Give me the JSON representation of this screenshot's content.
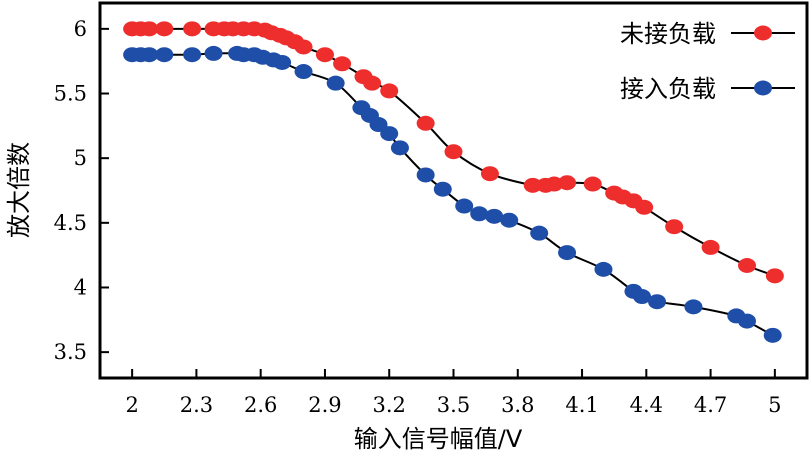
{
  "chart_data": {
    "type": "line",
    "xlabel": "输入信号幅值/V",
    "ylabel": "放大倍数",
    "xlim": [
      1.85,
      5.15
    ],
    "ylim": [
      3.3,
      6.2
    ],
    "xticks": [
      "2",
      "2.3",
      "2.6",
      "2.9",
      "3.2",
      "3.5",
      "3.8",
      "4.1",
      "4.4",
      "4.7",
      "5"
    ],
    "yticks": [
      "3.5",
      "4",
      "4.5",
      "5",
      "5.5",
      "6"
    ],
    "grid": false,
    "legend_position": "top-right",
    "series": [
      {
        "name": "未接负载",
        "color": "#ee2d2d",
        "x": [
          2.0,
          2.04,
          2.08,
          2.15,
          2.28,
          2.38,
          2.43,
          2.47,
          2.52,
          2.57,
          2.62,
          2.65,
          2.69,
          2.72,
          2.76,
          2.8,
          2.9,
          2.98,
          3.08,
          3.12,
          3.2,
          3.37,
          3.5,
          3.67,
          3.87,
          3.93,
          3.97,
          4.03,
          4.15,
          4.25,
          4.29,
          4.34,
          4.39,
          4.53,
          4.7,
          4.87,
          5.0
        ],
        "y": [
          6.0,
          6.0,
          6.0,
          6.0,
          6.0,
          6.0,
          6.0,
          6.0,
          6.0,
          6.0,
          5.99,
          5.97,
          5.95,
          5.93,
          5.9,
          5.86,
          5.8,
          5.73,
          5.63,
          5.58,
          5.52,
          5.27,
          5.05,
          4.88,
          4.79,
          4.79,
          4.8,
          4.81,
          4.8,
          4.73,
          4.7,
          4.67,
          4.62,
          4.47,
          4.31,
          4.17,
          4.09
        ]
      },
      {
        "name": "接入负载",
        "color": "#1f4ea8",
        "x": [
          2.0,
          2.04,
          2.08,
          2.15,
          2.28,
          2.38,
          2.49,
          2.52,
          2.57,
          2.61,
          2.66,
          2.7,
          2.8,
          2.95,
          3.07,
          3.11,
          3.15,
          3.2,
          3.25,
          3.37,
          3.45,
          3.55,
          3.62,
          3.69,
          3.76,
          3.9,
          4.03,
          4.2,
          4.34,
          4.38,
          4.45,
          4.62,
          4.82,
          4.87,
          4.99
        ],
        "y": [
          5.8,
          5.8,
          5.8,
          5.8,
          5.8,
          5.81,
          5.81,
          5.8,
          5.8,
          5.78,
          5.76,
          5.74,
          5.67,
          5.58,
          5.39,
          5.33,
          5.26,
          5.19,
          5.08,
          4.87,
          4.76,
          4.63,
          4.57,
          4.55,
          4.52,
          4.42,
          4.27,
          4.14,
          3.97,
          3.93,
          3.89,
          3.85,
          3.78,
          3.74,
          3.63
        ]
      }
    ]
  }
}
